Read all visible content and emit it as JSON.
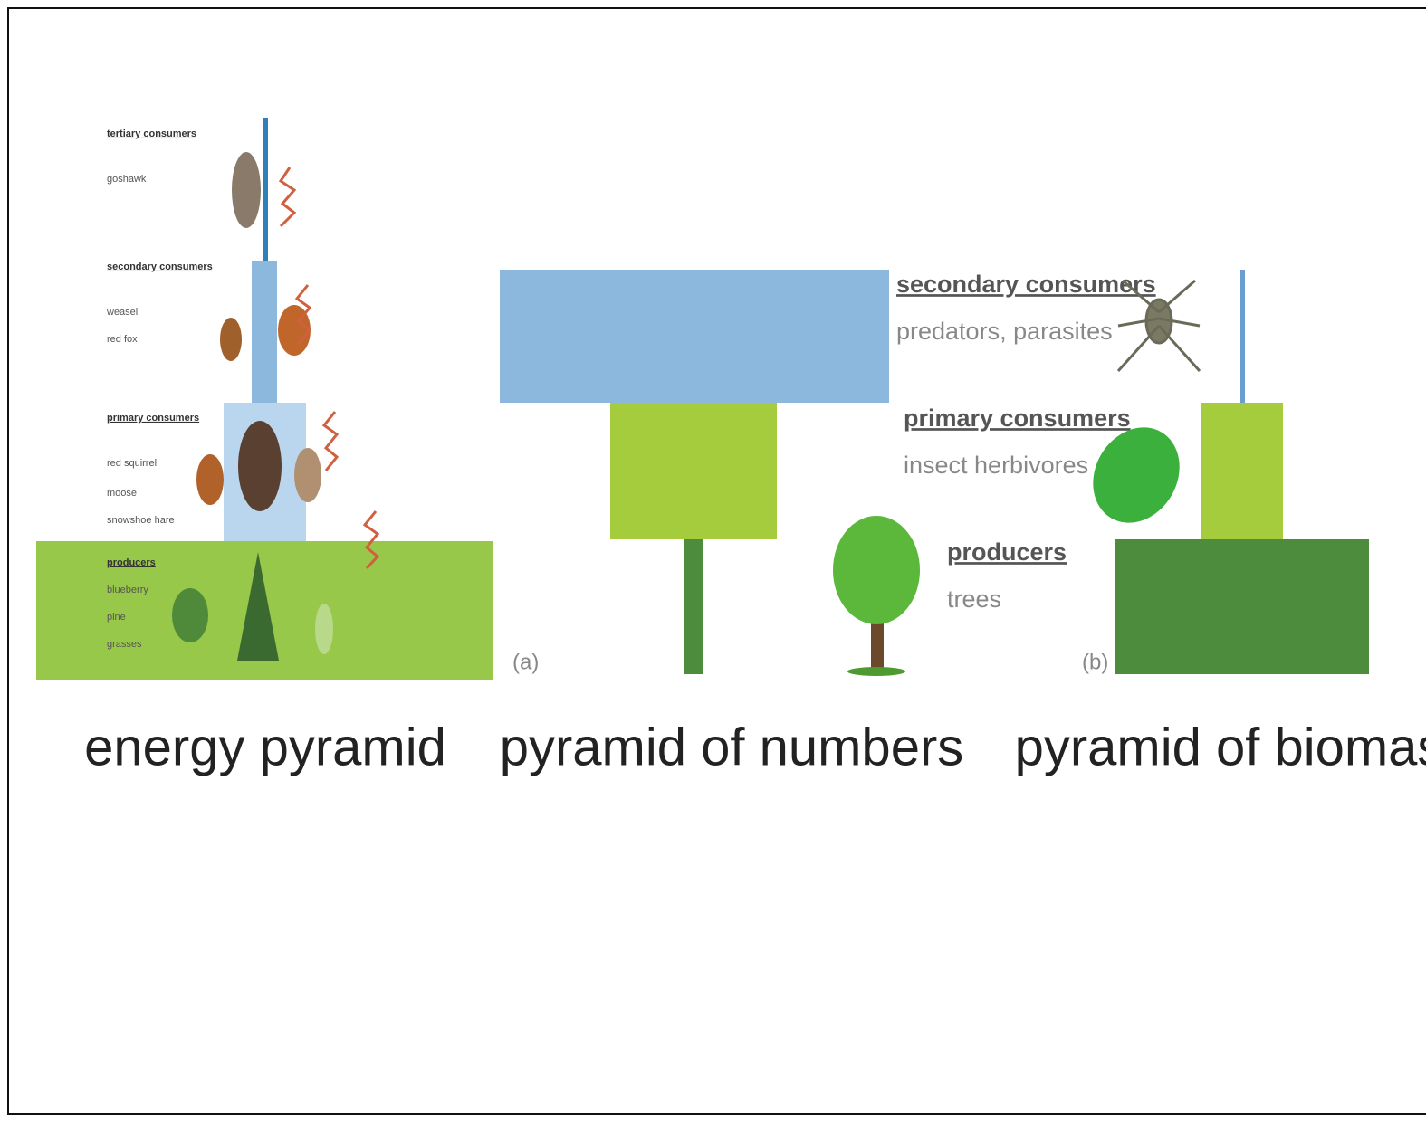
{
  "energy_pyramid": {
    "title": "energy pyramid",
    "levels": [
      {
        "name": "tertiary consumers",
        "examples": [
          "goshawk"
        ]
      },
      {
        "name": "secondary consumers",
        "examples": [
          "weasel",
          "red fox"
        ]
      },
      {
        "name": "primary consumers",
        "examples": [
          "red squirrel",
          "moose",
          "snowshoe hare"
        ]
      },
      {
        "name": "producers",
        "examples": [
          "blueberry",
          "pine",
          "grasses"
        ]
      }
    ]
  },
  "pyramid_of_numbers": {
    "panel": "(a)",
    "title": "pyramid of numbers",
    "levels": [
      {
        "name": "secondary consumers",
        "examples": "predators, parasites"
      },
      {
        "name": "primary consumers",
        "examples": "insect herbivores"
      },
      {
        "name": "producers",
        "examples": "trees"
      }
    ]
  },
  "pyramid_of_biomass": {
    "panel": "(b)",
    "title": "pyramid of biomass"
  }
}
